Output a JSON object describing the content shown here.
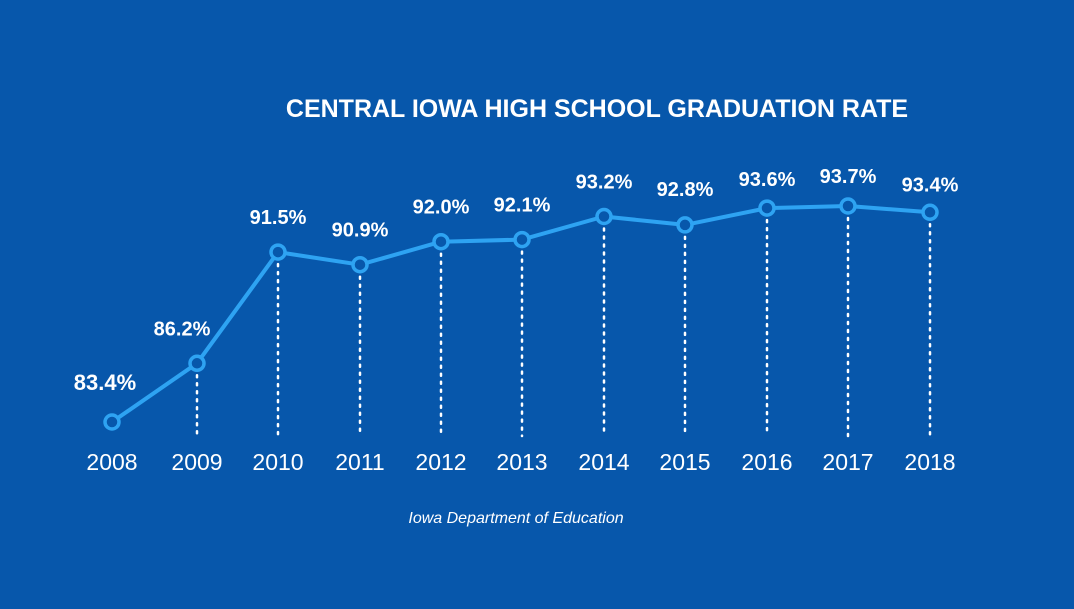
{
  "chart_data": {
    "type": "line",
    "title": "CENTRAL IOWA HIGH SCHOOL GRADUATION RATE",
    "source": "Iowa Department of Education",
    "categories": [
      "2008",
      "2009",
      "2010",
      "2011",
      "2012",
      "2013",
      "2014",
      "2015",
      "2016",
      "2017",
      "2018"
    ],
    "values": [
      83.4,
      86.2,
      91.5,
      90.9,
      92.0,
      92.1,
      93.2,
      92.8,
      93.6,
      93.7,
      93.4
    ],
    "value_labels": [
      "83.4%",
      "86.2%",
      "91.5%",
      "90.9%",
      "92.0%",
      "92.1%",
      "93.2%",
      "92.8%",
      "93.6%",
      "93.7%",
      "93.4%"
    ],
    "ylim": [
      81,
      94.5
    ],
    "grid": false,
    "legend": "none"
  },
  "colors": {
    "background": "#0757ab",
    "line": "#2ea3f2",
    "marker_fill": "#0757ab",
    "dropline": "#ffffff",
    "text": "#ffffff"
  }
}
